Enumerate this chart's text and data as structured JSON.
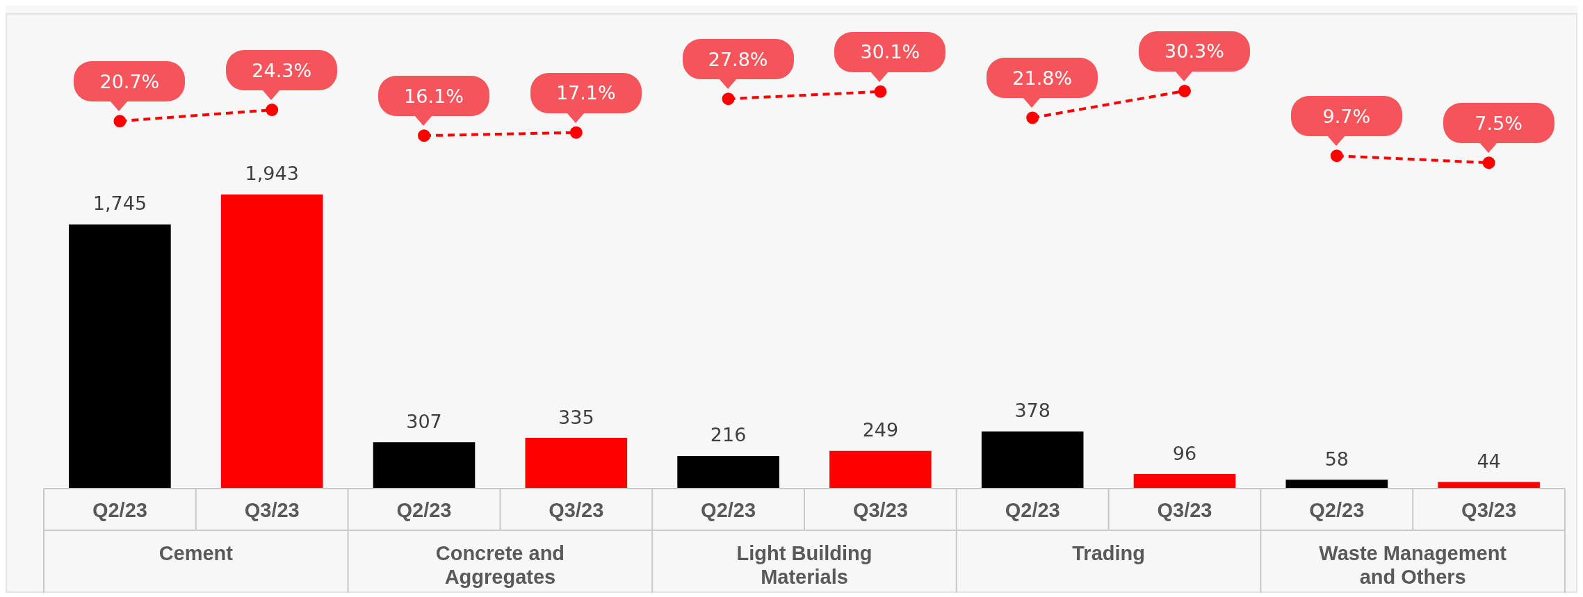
{
  "chart_data": {
    "type": "bar",
    "categories": [
      "Q2/23",
      "Q3/23",
      "Q2/23",
      "Q3/23",
      "Q2/23",
      "Q3/23",
      "Q2/23",
      "Q3/23",
      "Q2/23",
      "Q3/23"
    ],
    "series": [
      {
        "colors": [
          "#000000",
          "#ff0000",
          "#000000",
          "#ff0000",
          "#000000",
          "#ff0000",
          "#000000",
          "#ff0000",
          "#000000",
          "#ff0000"
        ],
        "values": [
          1745,
          1943,
          307,
          335,
          216,
          249,
          378,
          96,
          58,
          44
        ],
        "value_labels": [
          "1,745",
          "1,943",
          "307",
          "335",
          "216",
          "249",
          "378",
          "96",
          "58",
          "44"
        ]
      },
      {
        "type": "line",
        "axis": "y2",
        "color": "#ff0000",
        "values": [
          20.7,
          24.3,
          null,
          null,
          null,
          null,
          null,
          null,
          null,
          null
        ],
        "value_labels": [
          "20.7%",
          "24.3%",
          null,
          null,
          null,
          null,
          null,
          null,
          null,
          null
        ]
      },
      {
        "type": "line",
        "axis": "y2",
        "color": "#ff0000",
        "values": [
          null,
          null,
          16.1,
          17.1,
          null,
          null,
          null,
          null,
          null,
          null
        ],
        "value_labels": [
          null,
          null,
          "16.1%",
          "17.1%",
          null,
          null,
          null,
          null,
          null,
          null
        ]
      },
      {
        "type": "line",
        "axis": "y2",
        "color": "#ff0000",
        "values": [
          null,
          null,
          null,
          null,
          27.8,
          30.1,
          null,
          null,
          null,
          null
        ],
        "value_labels": [
          null,
          null,
          null,
          null,
          "27.8%",
          "30.1%",
          null,
          null,
          null,
          null
        ]
      },
      {
        "type": "line",
        "axis": "y2",
        "color": "#ff0000",
        "values": [
          null,
          null,
          null,
          null,
          null,
          null,
          21.8,
          30.3,
          null,
          null
        ],
        "value_labels": [
          null,
          null,
          null,
          null,
          null,
          null,
          "21.8%",
          "30.3%",
          null,
          null
        ]
      },
      {
        "type": "line",
        "axis": "y2",
        "color": "#ff0000",
        "values": [
          null,
          null,
          null,
          null,
          null,
          null,
          null,
          null,
          9.7,
          7.5
        ],
        "value_labels": [
          null,
          null,
          null,
          null,
          null,
          null,
          null,
          null,
          "9.7%",
          "7.5%"
        ]
      }
    ],
    "ylim": [
      0,
      3140
    ],
    "y2lim": [
      -96,
      55
    ],
    "tick_labels": "x",
    "grid": false,
    "legend": false,
    "marker": "circle",
    "line_style": "dashed",
    "annotations": [
      "Cement",
      "Concrete and Aggregates",
      "Light Building Materials",
      "Trading",
      "Waste Management and Others"
    ]
  }
}
